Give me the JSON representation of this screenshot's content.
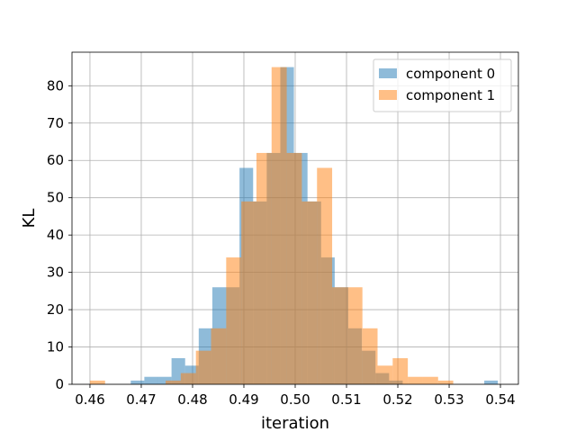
{
  "chart_data": {
    "type": "histogram",
    "title": "",
    "xlabel": "iteration",
    "ylabel": "KL",
    "xlim": [
      0.4565,
      0.5435
    ],
    "ylim": [
      0,
      89
    ],
    "xticks": [
      0.46,
      0.47,
      0.48,
      0.49,
      0.5,
      0.51,
      0.52,
      0.53,
      0.54
    ],
    "yticks": [
      0,
      10,
      20,
      30,
      40,
      50,
      60,
      70,
      80
    ],
    "grid": true,
    "legend_position": "top-right",
    "series": [
      {
        "name": "component 0",
        "color": "#1f77b4",
        "alpha": 0.5,
        "bin_edges": [
          0.46,
          0.46265,
          0.4653,
          0.46795,
          0.4706,
          0.47325,
          0.4759,
          0.47855,
          0.4812,
          0.48385,
          0.4865,
          0.48915,
          0.4918,
          0.49445,
          0.4971,
          0.49975,
          0.5024,
          0.50505,
          0.5077,
          0.51035,
          0.513,
          0.51565,
          0.5183,
          0.52095,
          0.5236,
          0.52625,
          0.5289,
          0.53155,
          0.5342,
          0.53685,
          0.5395
        ],
        "counts": [
          0,
          0,
          0,
          1,
          2,
          2,
          7,
          5,
          15,
          26,
          26,
          58,
          49,
          62,
          85,
          62,
          49,
          34,
          26,
          15,
          9,
          3,
          1,
          0,
          0,
          0,
          0,
          0,
          0,
          1
        ]
      },
      {
        "name": "component 1",
        "color": "#ff7f0e",
        "alpha": 0.5,
        "bin_edges": [
          0.46,
          0.46295,
          0.4659,
          0.46885,
          0.4718,
          0.47475,
          0.4777,
          0.48065,
          0.4836,
          0.48655,
          0.4895,
          0.49245,
          0.4954,
          0.49835,
          0.5013,
          0.50425,
          0.5072,
          0.51015,
          0.5131,
          0.51605,
          0.519,
          0.52195,
          0.5249,
          0.52785,
          0.5308
        ],
        "counts": [
          1,
          0,
          0,
          0,
          0,
          1,
          3,
          9,
          15,
          34,
          49,
          62,
          85,
          62,
          49,
          58,
          26,
          26,
          15,
          5,
          7,
          2,
          2,
          1
        ]
      }
    ]
  }
}
